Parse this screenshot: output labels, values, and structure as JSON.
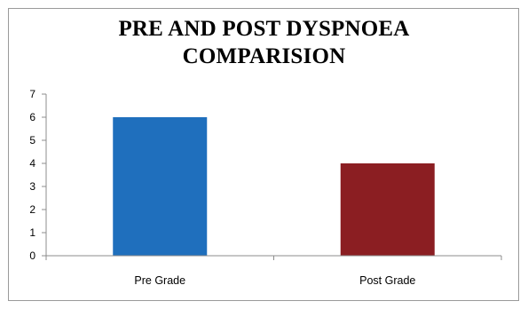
{
  "chart_data": {
    "type": "bar",
    "title_lines": [
      "PRE AND POST DYSPNOEA",
      "COMPARISION"
    ],
    "categories": [
      "Pre Grade",
      "Post Grade"
    ],
    "values": [
      6,
      4
    ],
    "colors": [
      "#1f6fbd",
      "#8b1e22"
    ],
    "ylim": [
      0,
      7
    ],
    "yticks": [
      "0",
      "1",
      "2",
      "3",
      "4",
      "5",
      "6",
      "7"
    ],
    "grid": false,
    "legend": "none"
  }
}
